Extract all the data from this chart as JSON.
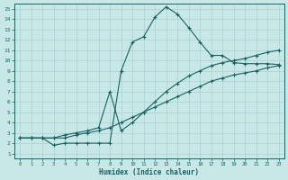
{
  "xlabel": "Humidex (Indice chaleur)",
  "bg_color": "#c8e8e8",
  "line_color": "#1a6060",
  "grid_color": "#a8d0d0",
  "xlim": [
    -0.5,
    23.5
  ],
  "ylim": [
    0.5,
    15.5
  ],
  "xticks": [
    0,
    1,
    2,
    3,
    4,
    5,
    6,
    7,
    8,
    9,
    10,
    11,
    12,
    13,
    14,
    15,
    16,
    17,
    18,
    19,
    20,
    21,
    22,
    23
  ],
  "yticks": [
    1,
    2,
    3,
    4,
    5,
    6,
    7,
    8,
    9,
    10,
    11,
    12,
    13,
    14,
    15
  ],
  "line1_x": [
    0,
    1,
    2,
    3,
    4,
    5,
    6,
    7,
    8,
    9,
    10,
    11,
    12,
    13,
    14,
    15,
    16,
    17,
    18,
    19,
    20,
    21,
    22,
    23
  ],
  "line1_y": [
    2.5,
    2.5,
    2.5,
    1.8,
    2.0,
    2.0,
    2.0,
    2.0,
    2.0,
    9.0,
    11.8,
    12.3,
    14.2,
    15.2,
    14.5,
    13.2,
    11.8,
    10.5,
    10.5,
    9.8,
    9.7,
    9.7,
    9.7,
    9.6
  ],
  "line2_x": [
    0,
    1,
    2,
    3,
    4,
    5,
    6,
    7,
    8,
    9,
    10,
    11,
    12,
    13,
    14,
    15,
    16,
    17,
    18,
    19,
    20,
    21,
    22,
    23
  ],
  "line2_y": [
    2.5,
    2.5,
    2.5,
    2.5,
    2.8,
    3.0,
    3.2,
    3.5,
    7.0,
    3.2,
    4.0,
    5.0,
    6.0,
    7.0,
    7.8,
    8.5,
    9.0,
    9.5,
    9.8,
    10.0,
    10.2,
    10.5,
    10.8,
    11.0
  ],
  "line3_x": [
    0,
    1,
    2,
    3,
    4,
    5,
    6,
    7,
    8,
    9,
    10,
    11,
    12,
    13,
    14,
    15,
    16,
    17,
    18,
    19,
    20,
    21,
    22,
    23
  ],
  "line3_y": [
    2.5,
    2.5,
    2.5,
    2.5,
    2.5,
    2.8,
    3.0,
    3.2,
    3.5,
    4.0,
    4.5,
    5.0,
    5.5,
    6.0,
    6.5,
    7.0,
    7.5,
    8.0,
    8.3,
    8.6,
    8.8,
    9.0,
    9.3,
    9.5
  ]
}
